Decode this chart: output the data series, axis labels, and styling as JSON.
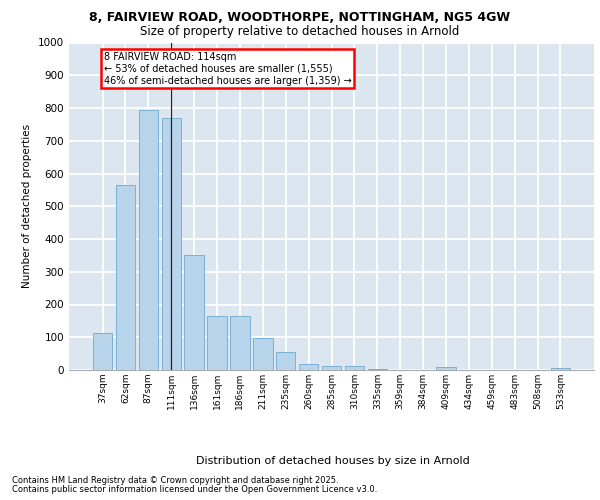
{
  "title_line1": "8, FAIRVIEW ROAD, WOODTHORPE, NOTTINGHAM, NG5 4GW",
  "title_line2": "Size of property relative to detached houses in Arnold",
  "xlabel": "Distribution of detached houses by size in Arnold",
  "ylabel": "Number of detached properties",
  "categories": [
    "37sqm",
    "62sqm",
    "87sqm",
    "111sqm",
    "136sqm",
    "161sqm",
    "186sqm",
    "211sqm",
    "235sqm",
    "260sqm",
    "285sqm",
    "310sqm",
    "335sqm",
    "359sqm",
    "384sqm",
    "409sqm",
    "434sqm",
    "459sqm",
    "483sqm",
    "508sqm",
    "533sqm"
  ],
  "values": [
    113,
    565,
    793,
    770,
    350,
    165,
    165,
    97,
    55,
    18,
    12,
    12,
    3,
    0,
    0,
    8,
    0,
    0,
    0,
    0,
    7
  ],
  "bar_color": "#b8d4eb",
  "bar_edge_color": "#7aafd4",
  "background_color": "#dce6f0",
  "grid_color": "#ffffff",
  "annotation_text": "8 FAIRVIEW ROAD: 114sqm\n← 53% of detached houses are smaller (1,555)\n46% of semi-detached houses are larger (1,359) →",
  "vline_index": 3,
  "ylim": [
    0,
    1000
  ],
  "yticks": [
    0,
    100,
    200,
    300,
    400,
    500,
    600,
    700,
    800,
    900,
    1000
  ],
  "footer_line1": "Contains HM Land Registry data © Crown copyright and database right 2025.",
  "footer_line2": "Contains public sector information licensed under the Open Government Licence v3.0."
}
